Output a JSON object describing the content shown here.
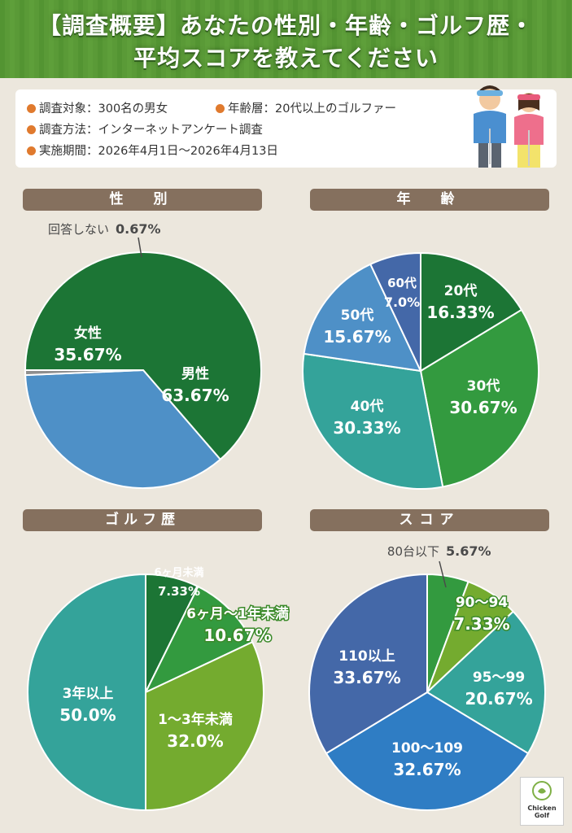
{
  "header": {
    "title_line1": "【調査概要】あなたの性別・年齢・ゴルフ歴・",
    "title_line2": "平均スコアを教えてください"
  },
  "info": {
    "target": "調査対象：300名の男女",
    "age_layer": "年齢層：20代以上のゴルファー",
    "method": "調査方法：インターネットアンケート調査",
    "period": "実施期間：2026年4月1日～2026年4月13日"
  },
  "colors": {
    "dark_green": "#1c7535",
    "green": "#339a3f",
    "lime": "#74ab2f",
    "teal": "#34a39a",
    "light_blue": "#4e90c7",
    "blue": "#2f7dc4",
    "navy": "#4468a8",
    "gray": "#8f8f8f",
    "section_bar": "#85705e"
  },
  "logo": {
    "line1": "Chicken",
    "line2": "Golf"
  },
  "chart_data": [
    {
      "type": "pie",
      "title": "性　別",
      "slices": [
        {
          "label": "男性",
          "value": 63.67,
          "display": "63.67%"
        },
        {
          "label": "女性",
          "value": 35.67,
          "display": "35.67%"
        },
        {
          "label": "回答しない",
          "value": 0.67,
          "display": "0.67%"
        }
      ]
    },
    {
      "type": "pie",
      "title": "年　齢",
      "slices": [
        {
          "label": "20代",
          "value": 16.33,
          "display": "16.33%"
        },
        {
          "label": "30代",
          "value": 30.67,
          "display": "30.67%"
        },
        {
          "label": "40代",
          "value": 30.33,
          "display": "30.33%"
        },
        {
          "label": "50代",
          "value": 15.67,
          "display": "15.67%"
        },
        {
          "label": "60代",
          "value": 7.0,
          "display": "7.0%"
        }
      ]
    },
    {
      "type": "pie",
      "title": "ゴルフ歴",
      "slices": [
        {
          "label": "6ヶ月未満",
          "value": 7.33,
          "display": "7.33%"
        },
        {
          "label": "6ヶ月～1年未満",
          "value": 10.67,
          "display": "10.67%"
        },
        {
          "label": "1～3年未満",
          "value": 32.0,
          "display": "32.0%"
        },
        {
          "label": "3年以上",
          "value": 50.0,
          "display": "50.0%"
        }
      ]
    },
    {
      "type": "pie",
      "title": "スコア",
      "slices": [
        {
          "label": "80台以下",
          "value": 5.67,
          "display": "5.67%"
        },
        {
          "label": "90～94",
          "value": 7.33,
          "display": "7.33%"
        },
        {
          "label": "95～99",
          "value": 20.67,
          "display": "20.67%"
        },
        {
          "label": "100～109",
          "value": 32.67,
          "display": "32.67%"
        },
        {
          "label": "110以上",
          "value": 33.67,
          "display": "33.67%"
        }
      ]
    }
  ]
}
